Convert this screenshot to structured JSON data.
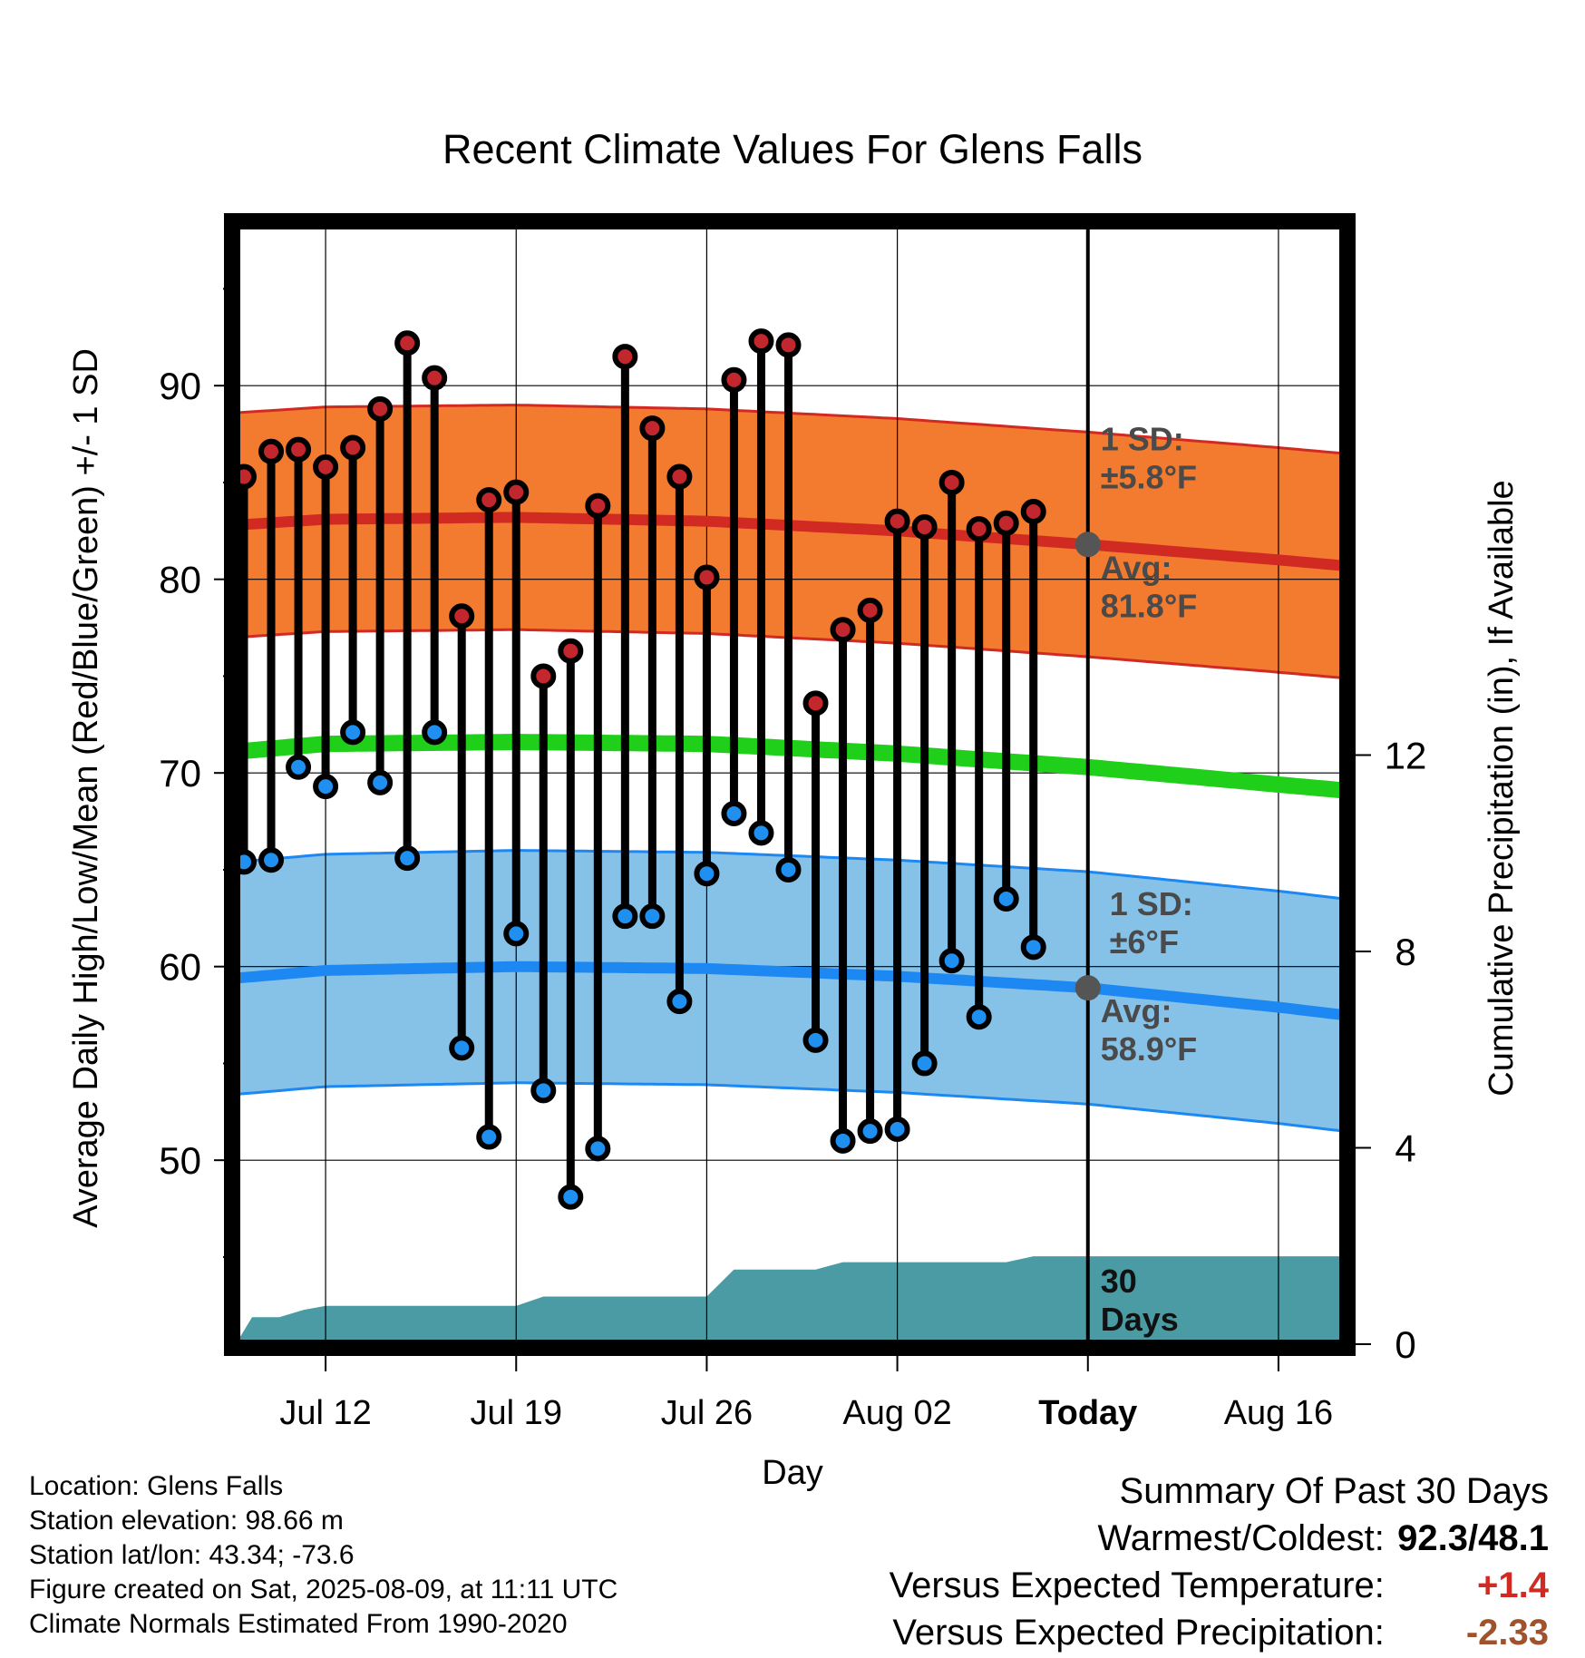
{
  "chart_data": {
    "type": "line",
    "title": "Recent Climate Values For Glens Falls",
    "xlabel": "Day",
    "ylabel": "Average Daily High/Low/Mean (Red/Blue/Green) +/- 1 SD",
    "y2label": "Cumulative Precipitation (in), If Available",
    "x_tick_labels": [
      "Jul 12",
      "Jul 19",
      "Jul 26",
      "Aug 02",
      "Today",
      "Aug 16"
    ],
    "x_tick_days": [
      12,
      19,
      26,
      33,
      40,
      47
    ],
    "today_day": 40,
    "xlim_days": [
      8.7,
      49.4
    ],
    "ylim": [
      40.5,
      98.3
    ],
    "y_ticks": [
      50,
      60,
      70,
      80,
      90
    ],
    "y2lim": [
      0,
      22.8
    ],
    "y2_ticks": [
      0,
      4,
      8,
      12
    ],
    "grid": true,
    "observed_days": [
      9,
      10,
      11,
      12,
      13,
      14,
      15,
      16,
      17,
      18,
      19,
      20,
      21,
      22,
      23,
      24,
      25,
      26,
      27,
      28,
      29,
      30,
      31,
      32,
      33,
      34,
      35,
      36,
      37,
      38,
      39
    ],
    "observed_high": [
      85.3,
      86.6,
      86.7,
      85.8,
      86.8,
      88.8,
      92.2,
      90.4,
      78.1,
      84.1,
      84.5,
      75.0,
      76.3,
      83.8,
      91.5,
      87.8,
      85.3,
      80.1,
      90.3,
      92.3,
      92.1,
      73.6,
      77.4,
      78.4,
      83.0,
      82.7,
      85.0,
      82.6,
      82.9,
      83.5,
      null
    ],
    "observed_low": [
      65.4,
      65.5,
      70.3,
      69.3,
      72.1,
      69.5,
      65.6,
      72.1,
      55.8,
      51.2,
      61.7,
      53.6,
      48.1,
      50.6,
      62.6,
      62.6,
      58.2,
      64.8,
      67.9,
      66.9,
      65.0,
      56.2,
      51.0,
      51.5,
      51.6,
      55.0,
      60.3,
      57.4,
      63.5,
      61.0,
      null
    ],
    "normals_days": [
      8.7,
      12,
      19,
      26,
      33,
      40,
      47,
      49.4
    ],
    "normal_high_avg": [
      82.8,
      83.1,
      83.2,
      83.0,
      82.5,
      81.8,
      81.0,
      80.7
    ],
    "normal_high_sd": 5.8,
    "normal_low_avg": [
      59.4,
      59.8,
      60.0,
      59.9,
      59.5,
      58.9,
      57.9,
      57.5
    ],
    "normal_low_sd": 6.0,
    "normal_mean": [
      71.1,
      71.5,
      71.6,
      71.5,
      71.0,
      70.3,
      69.4,
      69.1
    ],
    "precip_days": [
      8.7,
      9.3,
      10.3,
      11.2,
      12.0,
      13.1,
      14.0,
      15.0,
      16.0,
      17.0,
      18.0,
      19.0,
      20.0,
      21.0,
      22.0,
      23.0,
      24.0,
      25.0,
      26.0,
      27.0,
      28.0,
      29.0,
      30.0,
      31.0,
      32.0,
      33.0,
      34.0,
      35.0,
      36.0,
      37.0,
      38.0,
      39.0,
      40.0,
      49.4
    ],
    "cumulative_precip": [
      0.0,
      0.55,
      0.55,
      0.7,
      0.78,
      0.78,
      0.78,
      0.78,
      0.78,
      0.78,
      0.78,
      0.78,
      0.97,
      0.97,
      0.97,
      0.97,
      0.97,
      0.97,
      0.97,
      1.52,
      1.52,
      1.52,
      1.52,
      1.67,
      1.67,
      1.67,
      1.67,
      1.67,
      1.67,
      1.67,
      1.79,
      1.79,
      1.79,
      1.79
    ],
    "annotations": {
      "high_sd_line1": "1 SD:",
      "high_sd_line2": "±5.8°F",
      "high_avg_line1": "Avg:",
      "high_avg_line2": "81.8°F",
      "low_sd_line1": "1 SD:",
      "low_sd_line2": "±6°F",
      "low_avg_line1": "Avg:",
      "low_avg_line2": "58.9°F",
      "precip_line1": "30",
      "precip_line2": "Days"
    },
    "colors": {
      "high_band": "#f27b2f",
      "high_band_edge": "#d12a23",
      "high_avg_line": "#d12a23",
      "low_band": "#86c2e8",
      "low_band_edge": "#1d88f2",
      "low_avg_line": "#1d88f2",
      "mean_line": "#1fcf1a",
      "precip_fill": "#4a9ba3",
      "high_dot": "#c1272d",
      "low_dot": "#1f8ff0",
      "annotation": "#4a4a4a"
    }
  },
  "info": {
    "location": "Location: Glens Falls",
    "elevation": "Station elevation: 98.66 m",
    "latlon": "Station lat/lon: 43.34; -73.6",
    "created": "Figure created on Sat, 2025-08-09, at 11:11 UTC",
    "normals": "Climate Normals Estimated From 1990-2020"
  },
  "summary": {
    "heading": "Summary Of Past 30 Days",
    "warm_cold_label": "Warmest/Coldest:",
    "warm_cold_value": "92.3/48.1",
    "temp_label": "Versus Expected Temperature:",
    "temp_value": "+1.4",
    "temp_color": "#d12a23",
    "precip_label": "Versus Expected Precipitation:",
    "precip_value": "-2.33",
    "precip_color": "#a0522d"
  }
}
